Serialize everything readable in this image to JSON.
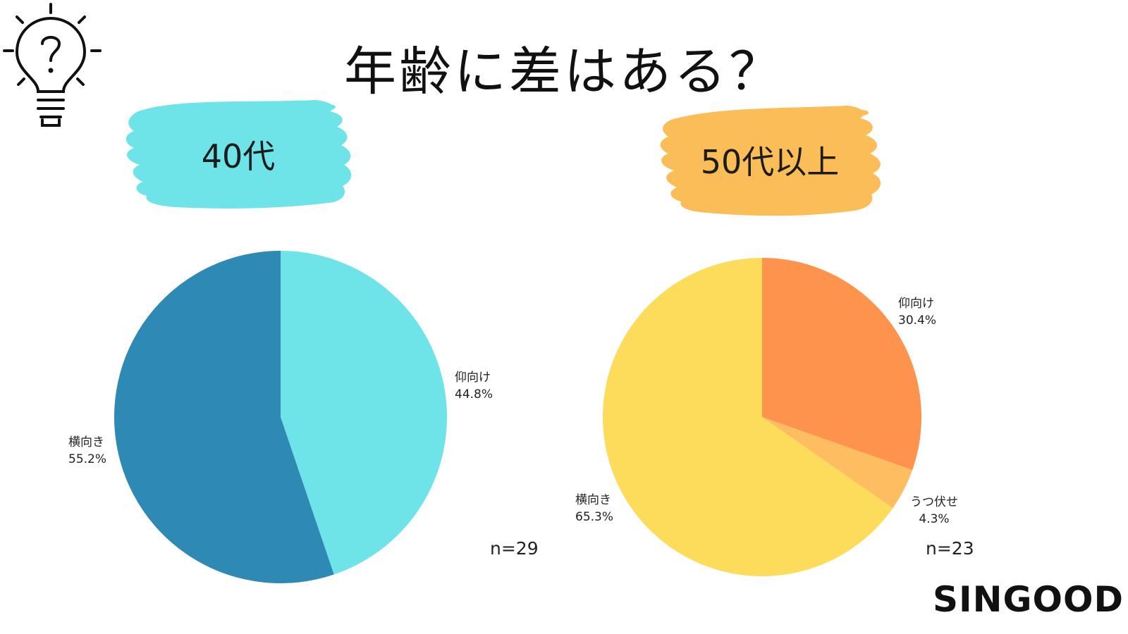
{
  "title": "年齢に差はある？",
  "icon": "lightbulb-question-icon",
  "brand": "SINGOOD",
  "colors": {
    "badge_left": "#6ee3e8",
    "badge_right": "#fbbd58"
  },
  "chart_data": [
    {
      "type": "pie",
      "group_label": "40代",
      "n_label": "n=29",
      "slices": [
        {
          "name": "仰向け",
          "value": 44.8,
          "value_label": "44.8%",
          "color": "#6ee3e8"
        },
        {
          "name": "横向き",
          "value": 55.2,
          "value_label": "55.2%",
          "color": "#2e89b5"
        }
      ]
    },
    {
      "type": "pie",
      "group_label": "50代以上",
      "n_label": "n=23",
      "slices": [
        {
          "name": "仰向け",
          "value": 30.4,
          "value_label": "30.4%",
          "color": "#fd934c"
        },
        {
          "name": "うつ伏せ",
          "value": 4.3,
          "value_label": "4.3%",
          "color": "#fdbd60"
        },
        {
          "name": "横向き",
          "value": 65.3,
          "value_label": "65.3%",
          "color": "#fddc5c"
        }
      ]
    }
  ]
}
